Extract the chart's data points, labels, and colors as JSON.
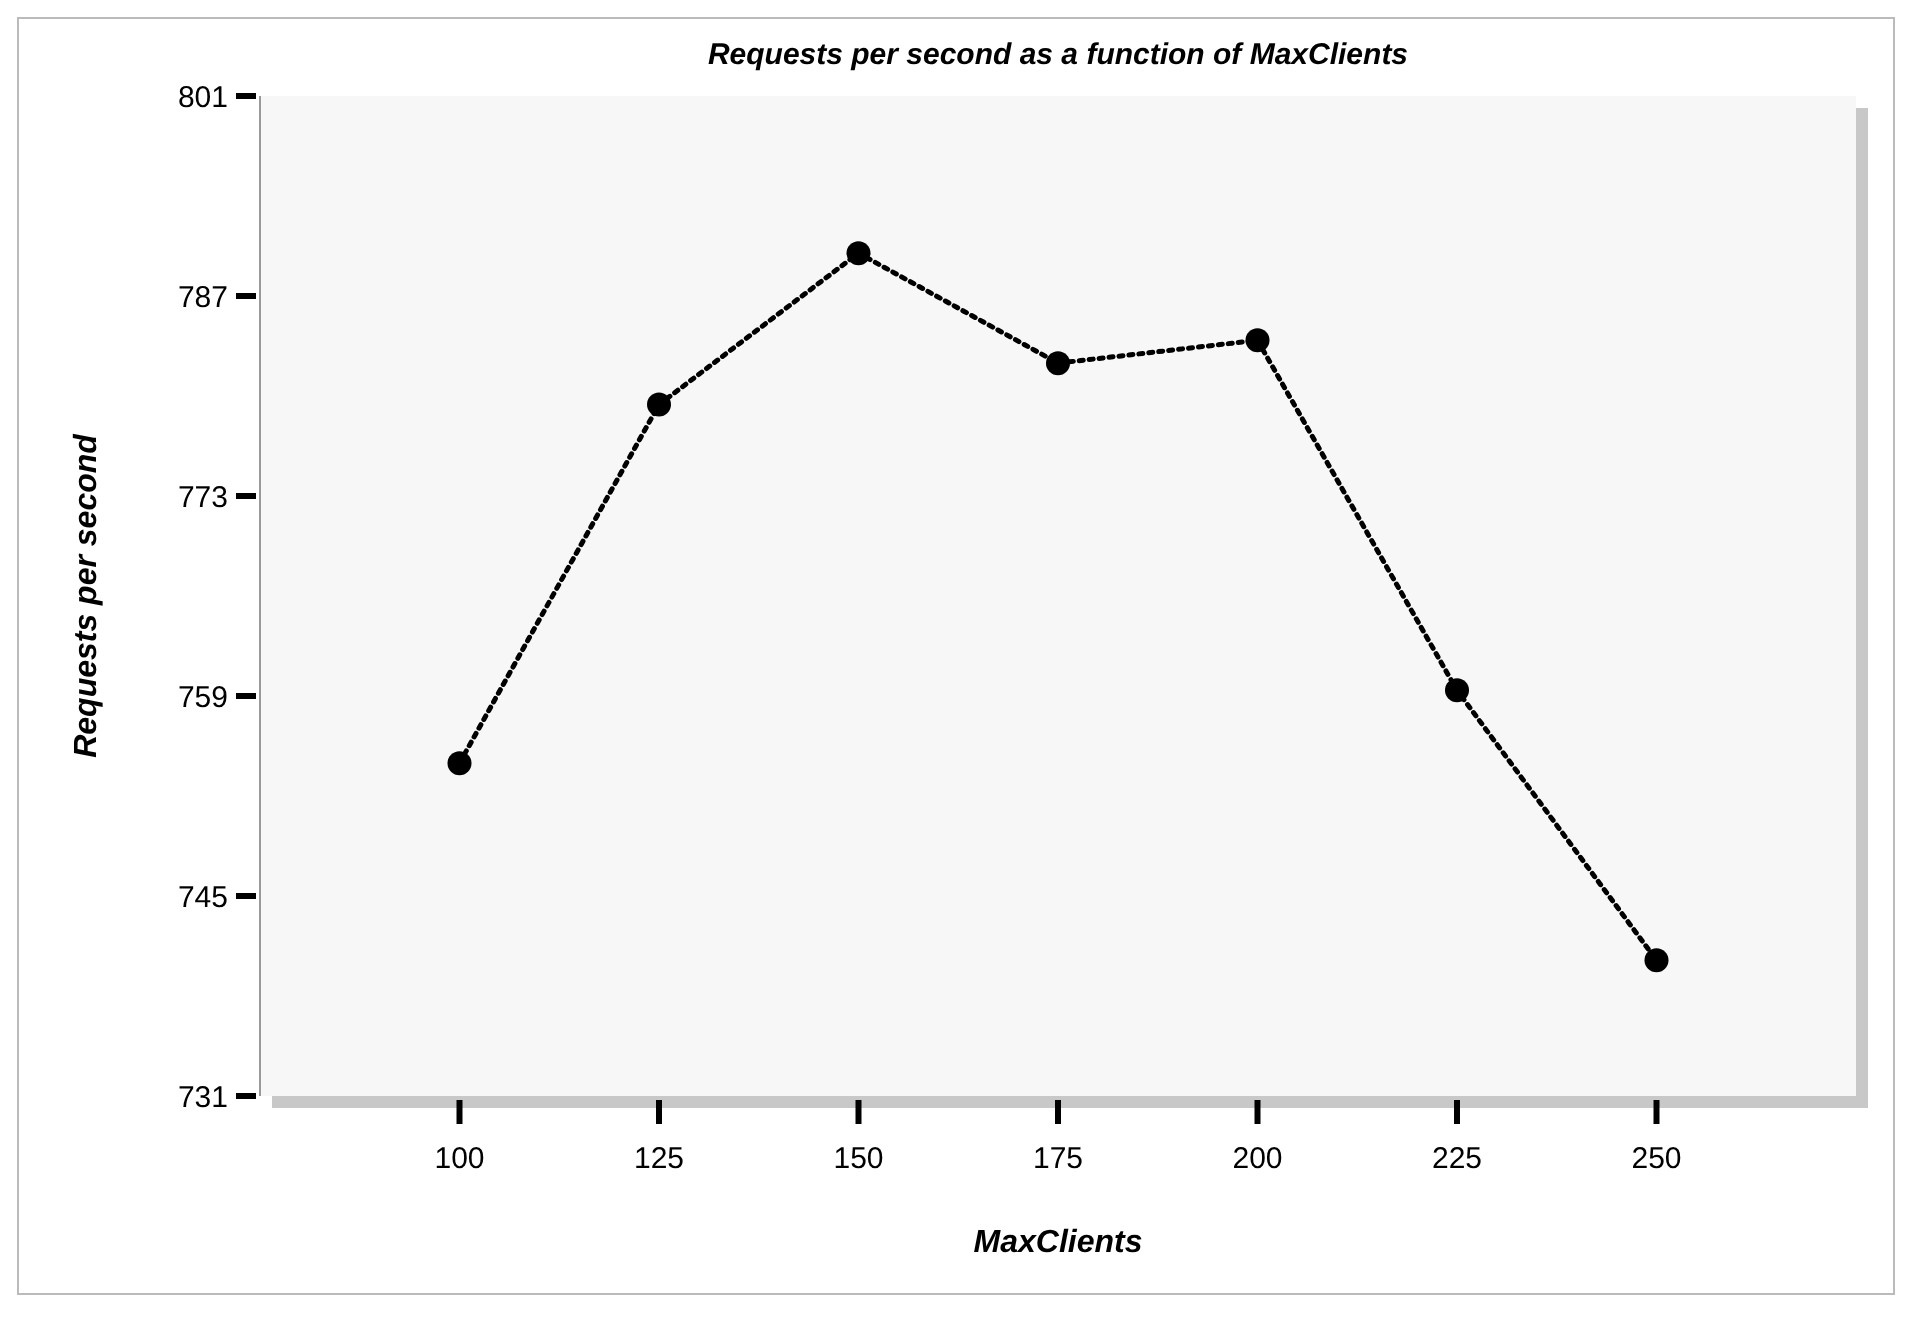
{
  "chart_data": {
    "type": "line",
    "title": "Requests per second as a function of MaxClients",
    "xlabel": "MaxClients",
    "ylabel": "Requests per second",
    "x": [
      100,
      125,
      150,
      175,
      200,
      225,
      250
    ],
    "series": [
      {
        "color": "#000000",
        "values": [
          754.3,
          779.4,
          790.0,
          782.3,
          783.9,
          759.4,
          740.5
        ]
      }
    ],
    "xlim": [
      75,
      275
    ],
    "xticks": [
      100,
      125,
      150,
      175,
      200,
      225,
      250
    ],
    "ylim": [
      731,
      801
    ],
    "yticks": [
      731,
      745,
      759,
      773,
      787,
      801
    ],
    "marker": "circle",
    "line_style": "dotted"
  }
}
